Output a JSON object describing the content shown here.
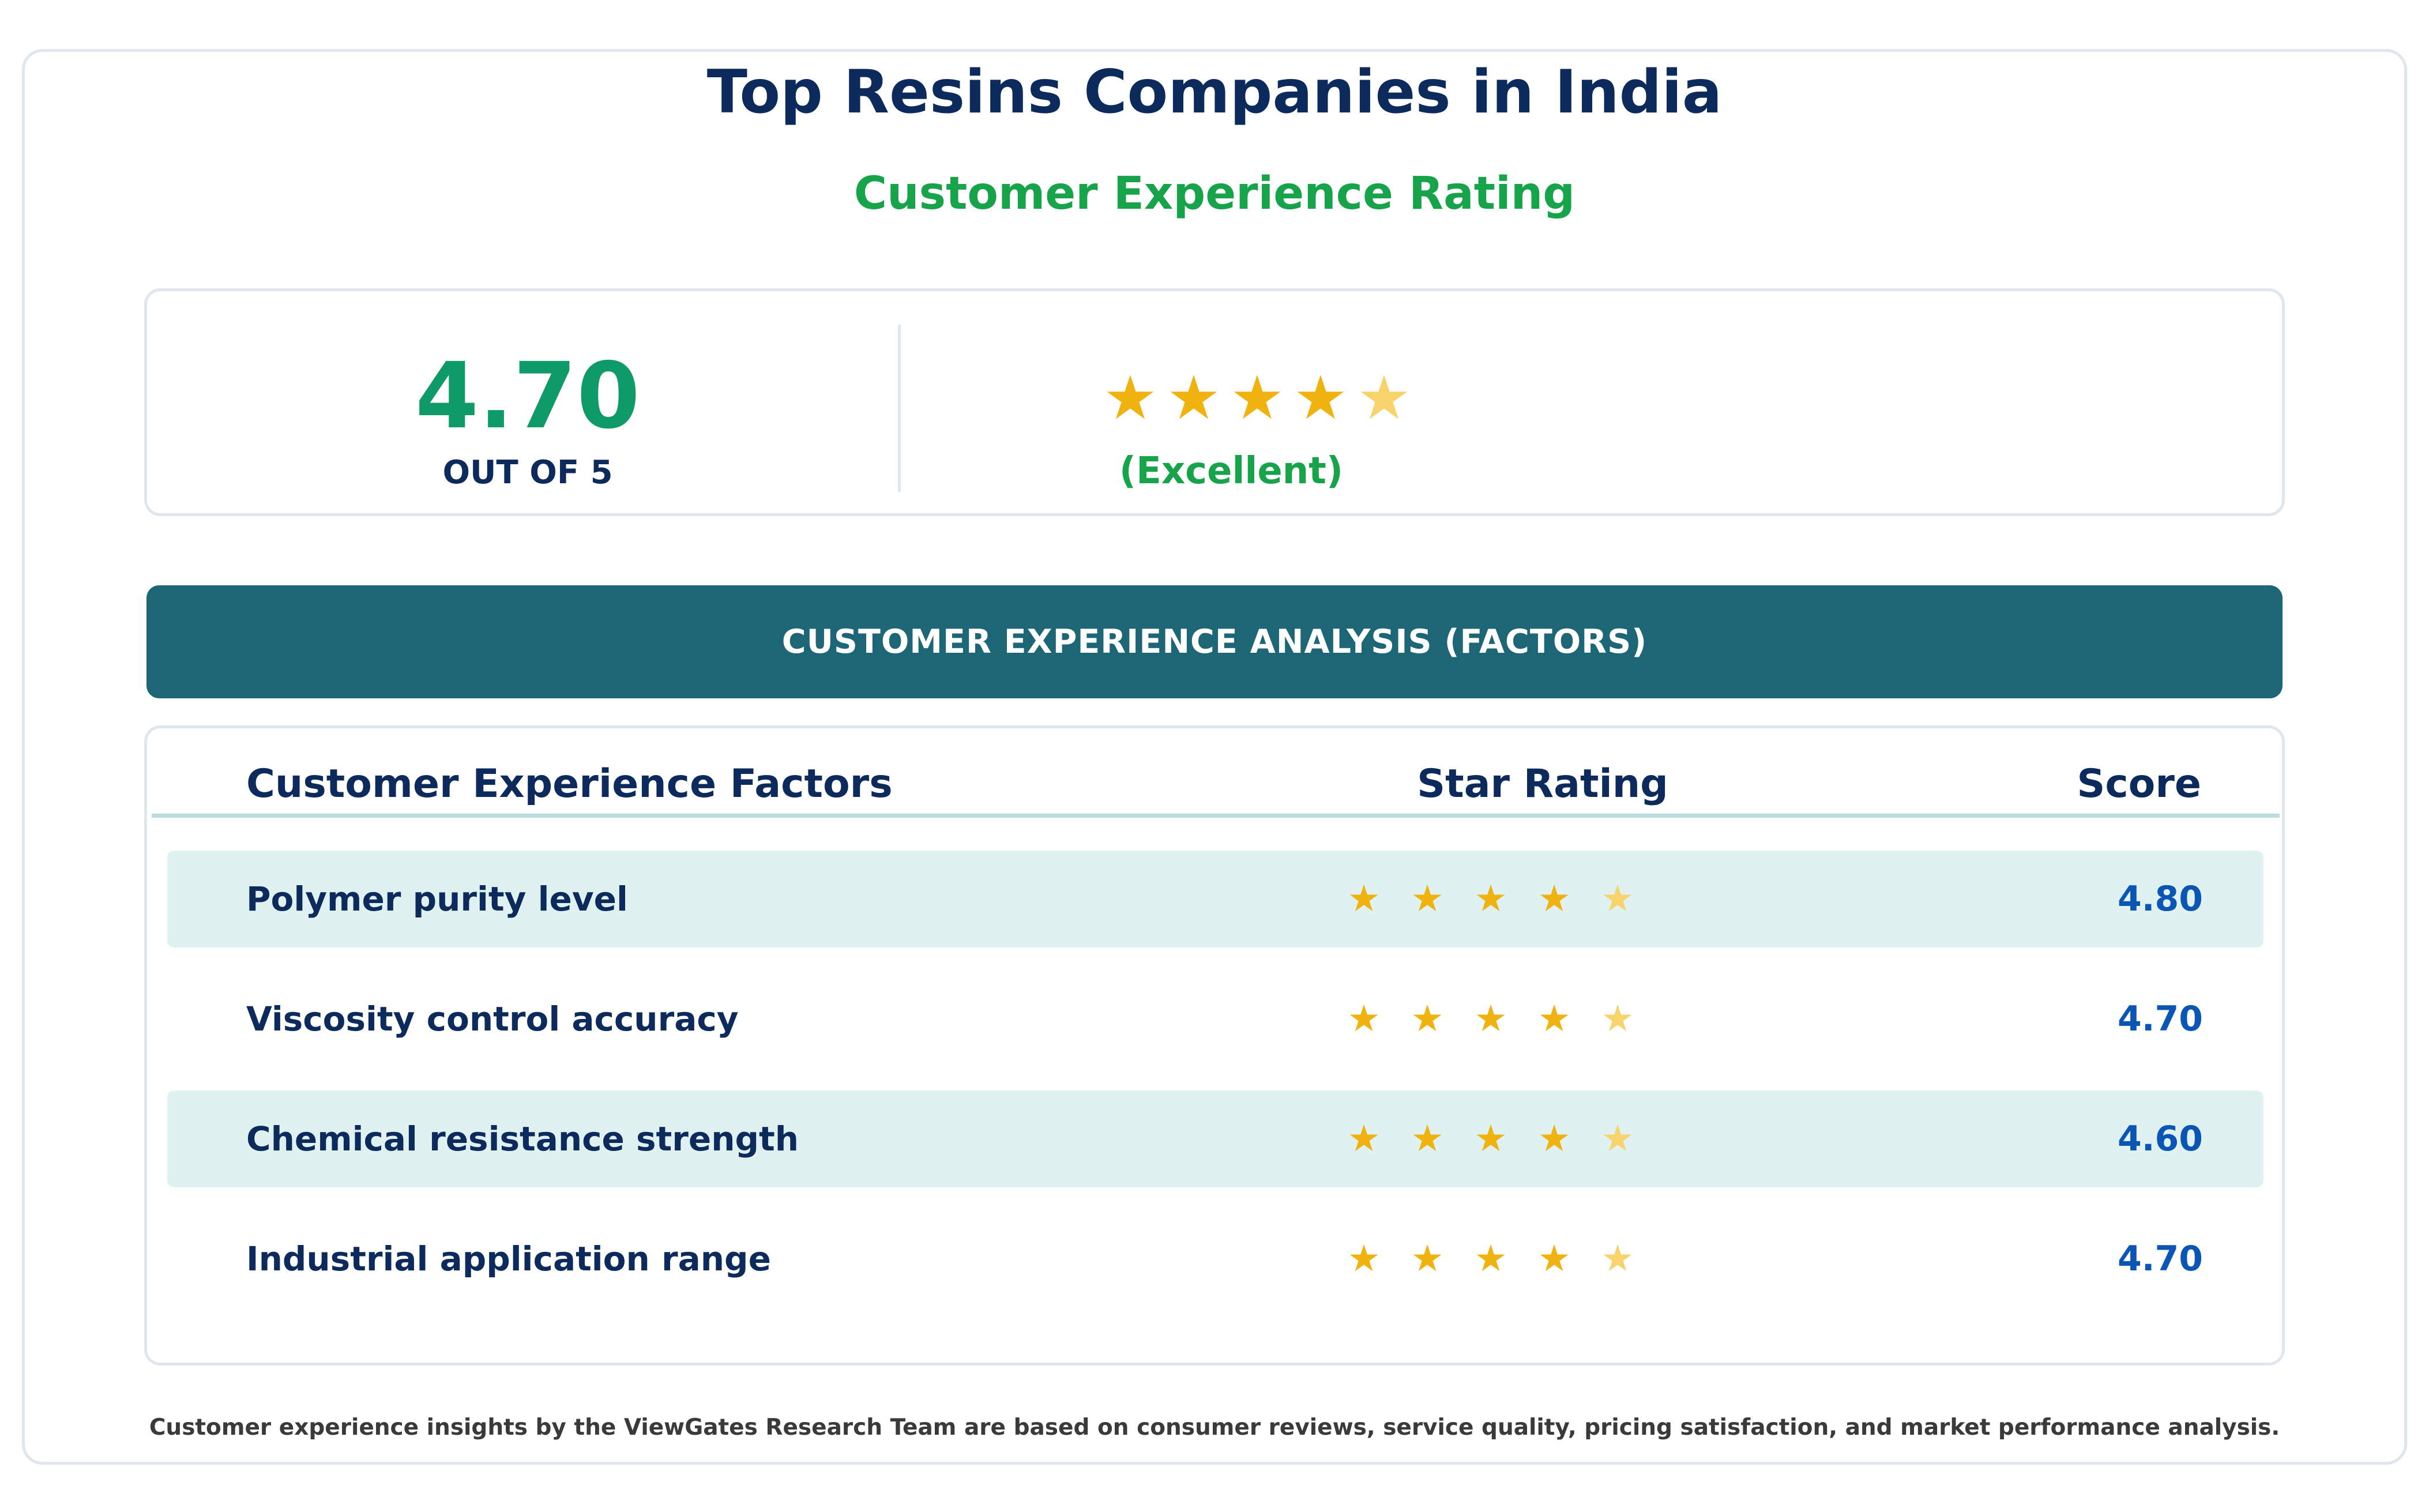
{
  "title": "Top Resins Companies in India",
  "subtitle": "Customer Experience Rating",
  "summary": {
    "score": "4.70",
    "scale_label": "OUT OF 5",
    "rating_value": 4.7,
    "verdict": "(Excellent)"
  },
  "colors": {
    "star_full": "#f0b20f",
    "star_partial": "#f8d26a"
  },
  "banner": "CUSTOMER EXPERIENCE ANALYSIS (FACTORS)",
  "table": {
    "headers": {
      "factor": "Customer Experience Factors",
      "stars": "Star Rating",
      "score": "Score"
    }
  },
  "chart_data": {
    "type": "table",
    "max_rating": 5,
    "categories": [
      "Polymer purity level",
      "Viscosity control accuracy",
      "Chemical resistance strength",
      "Industrial application range"
    ],
    "values": [
      4.8,
      4.7,
      4.6,
      4.7
    ],
    "labels": [
      "4.80",
      "4.70",
      "4.60",
      "4.70"
    ]
  },
  "footer": "Customer experience insights by the ViewGates Research Team are based on consumer reviews, service quality, pricing satisfaction, and market performance analysis."
}
